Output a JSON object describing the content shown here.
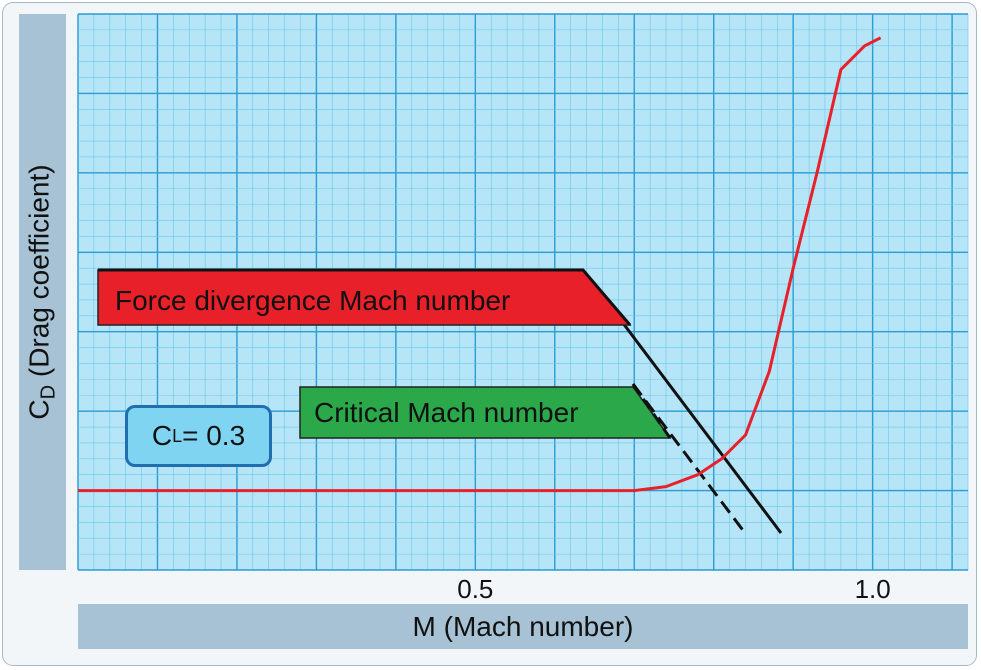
{
  "chart_data": {
    "type": "line",
    "xlabel": "M (Mach number)",
    "ylabel_main": "C",
    "ylabel_sub": "D",
    "ylabel_rest": " (Drag coefficient)",
    "x_ticks": [
      {
        "value": 0.5,
        "label": "0.5"
      },
      {
        "value": 1.0,
        "label": "1.0"
      }
    ],
    "xlim": [
      0.0,
      1.12
    ],
    "ylim": [
      0,
      7
    ],
    "grid": true,
    "series": [
      {
        "name": "",
        "color": "#e8202a",
        "x": [
          0.0,
          0.5,
          0.7,
          0.74,
          0.78,
          0.81,
          0.84,
          0.87,
          0.9,
          0.93,
          0.96,
          0.99,
          1.01
        ],
        "y": [
          1.0,
          1.0,
          1.0,
          1.05,
          1.2,
          1.4,
          1.7,
          2.5,
          3.8,
          5.0,
          6.3,
          6.6,
          6.7
        ]
      }
    ],
    "annotations": {
      "cl_main": "C",
      "cl_sub": "L",
      "cl_value": "= 0.3",
      "force_divergence": "Force divergence Mach number",
      "critical": "Critical Mach number"
    },
    "colors": {
      "plot_bg": "#b6e5f7",
      "grid_major": "#2a9bd3",
      "grid_minor": "#6ec6ea",
      "force_tag": "#e8202a",
      "critical_tag": "#2aa84a"
    }
  }
}
